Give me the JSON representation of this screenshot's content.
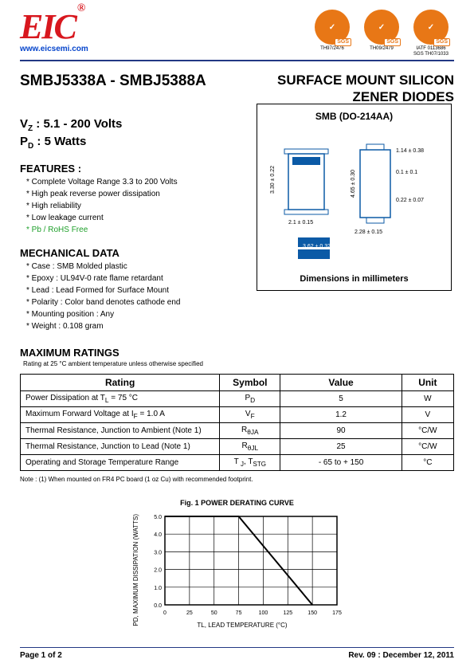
{
  "header": {
    "logo_text": "EIC",
    "reg_mark": "®",
    "website": "www.eicsemi.com",
    "certs": [
      {
        "badge": "✓",
        "line1": "TH97/2476",
        "line2": ""
      },
      {
        "badge": "✓",
        "line1": "TH09/2479",
        "line2": ""
      },
      {
        "badge": "✓",
        "line1": "IATF 0113686",
        "line2": "SGS TH07/1033"
      }
    ]
  },
  "titles": {
    "part_range": "SMBJ5338A - SMBJ5388A",
    "product_line1": "SURFACE MOUNT SILICON",
    "product_line2": "ZENER DIODES"
  },
  "specs": {
    "vz_label": "V",
    "vz_sub": "Z",
    "vz_value": " : 5.1 - 200 Volts",
    "pd_label": "P",
    "pd_sub": "D",
    "pd_value": " : 5 Watts"
  },
  "features": {
    "heading": "FEATURES :",
    "items": [
      "Complete Voltage Range 3.3 to 200 Volts",
      "High peak reverse power dissipation",
      "High reliability",
      "Low leakage current",
      "Pb / RoHS Free"
    ]
  },
  "mech": {
    "heading": "MECHANICAL DATA",
    "items": [
      "Case : SMB Molded plastic",
      "Epoxy : UL94V-0 rate flame retardant",
      "Lead : Lead Formed for Surface Mount",
      "Polarity : Color band denotes cathode end",
      "Mounting position : Any",
      "Weight :  0.108 gram"
    ]
  },
  "package": {
    "title": "SMB (DO-214AA)",
    "footer": "Dimensions in millimeters",
    "dims": {
      "top_w": "2.1 ± 0.15",
      "top_h": "3.30 ± 0.22",
      "side_h": "4.65 ± 0.30",
      "t1": "1.14 ± 0.38",
      "t2": "0.1 ± 0.1",
      "t3": "0.22 ± 0.07",
      "bot_w": "2.28 ±  0.15",
      "foot_w": "3.62 ± 0.32"
    }
  },
  "max_ratings": {
    "heading": "MAXIMUM RATINGS",
    "subhead": "Rating at 25 °C ambient temperature unless otherwise specified",
    "columns": [
      "Rating",
      "Symbol",
      "Value",
      "Unit"
    ],
    "rows": [
      [
        "Power Dissipation at T",
        "L",
        " = 75 °C",
        "P",
        "D",
        "5",
        "W"
      ],
      [
        "Maximum Forward Voltage at I",
        "F",
        " = 1.0 A",
        "V",
        "F",
        "1.2",
        "V"
      ],
      [
        "Thermal Resistance, Junction to Ambient  (Note 1)",
        "",
        "",
        "R",
        "θJA",
        "90",
        "°C/W"
      ],
      [
        "Thermal Resistance, Junction to Lead  (Note 1)",
        "",
        "",
        "R",
        "θJL",
        "25",
        "°C/W"
      ],
      [
        "Operating and Storage Temperature Range",
        "",
        "",
        "T",
        "J , STG",
        "- 65 to + 150",
        "°C"
      ]
    ]
  },
  "note": "Note :  (1)  When mounted on FR4 PC board (1 oz Cu) with recommended footprint.",
  "figure": {
    "title": "Fig. 1  POWER DERATING CURVE",
    "ylabel": "PD, MAXIMUM DISSIPATION (WATTS)",
    "xlabel": "TL, LEAD TEMPERATURE (°C)",
    "xlim": [
      0,
      175
    ],
    "ylim": [
      0,
      5.0
    ],
    "xticks": [
      0,
      25,
      50,
      75,
      100,
      125,
      150,
      175
    ],
    "yticks": [
      0,
      1.0,
      2.0,
      3.0,
      4.0,
      5.0
    ],
    "line": [
      [
        0,
        5.0
      ],
      [
        75,
        5.0
      ],
      [
        150,
        0
      ]
    ],
    "grid_color": "#000000",
    "line_color": "#000000",
    "line_width": 2
  },
  "footer": {
    "page": "Page 1 of 2",
    "rev": "Rev. 09 : December 12, 2011"
  }
}
